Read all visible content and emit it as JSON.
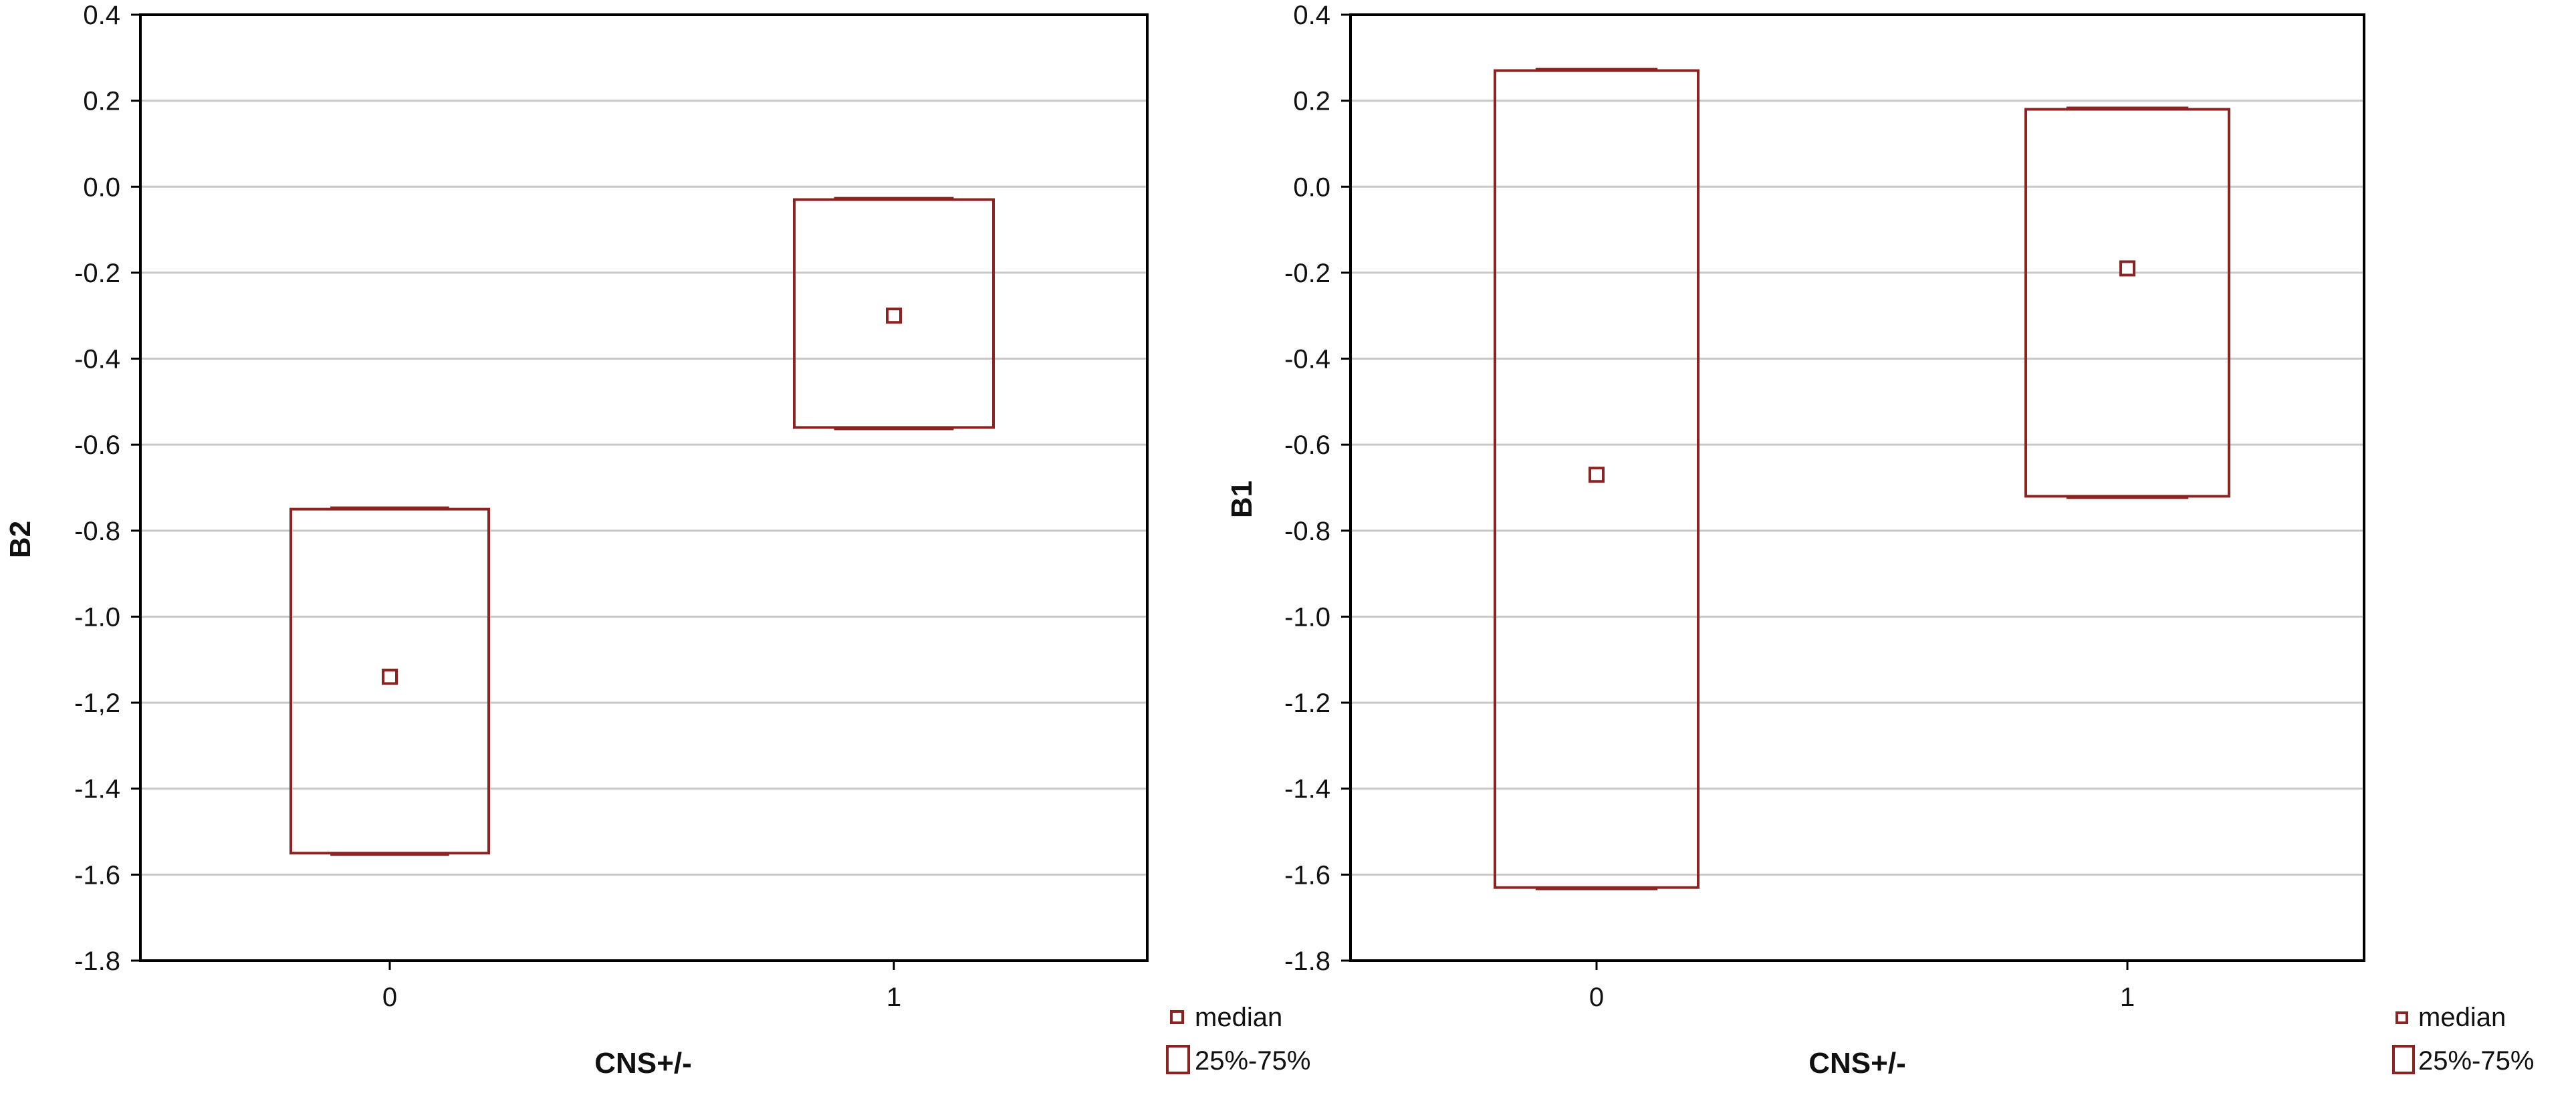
{
  "colors": {
    "box": "#8b2323",
    "gridline": "#c8c8c8",
    "frame": "#000000"
  },
  "legend": {
    "median_label": "median",
    "iqr_label": "25%-75%"
  },
  "chart_data": [
    {
      "type": "box",
      "title": "",
      "xlabel": "CNS+/-",
      "ylabel": "B2",
      "categories": [
        "0",
        "1"
      ],
      "ylim": [
        -1.8,
        0.4
      ],
      "yticks": [
        "0.4",
        "0.2",
        "0.0",
        "-0.2",
        "-0.4",
        "-0.6",
        "-0.8",
        "-1.0",
        "-1,2",
        "-1.4",
        "-1.6",
        "-1.8"
      ],
      "series": [
        {
          "category": "0",
          "q1": -1.55,
          "median": -1.14,
          "q3": -0.75
        },
        {
          "category": "1",
          "q1": -0.56,
          "median": -0.3,
          "q3": -0.03
        }
      ],
      "grid": true,
      "legend_position": "bottom-right"
    },
    {
      "type": "box",
      "title": "",
      "xlabel": "CNS+/-",
      "ylabel": "B1",
      "categories": [
        "0",
        "1"
      ],
      "ylim": [
        -1.8,
        0.4
      ],
      "yticks": [
        "0.4",
        "0.2",
        "0.0",
        "-0.2",
        "-0.4",
        "-0.6",
        "-0.8",
        "-1.0",
        "-1.2",
        "-1.4",
        "-1.6",
        "-1.8"
      ],
      "series": [
        {
          "category": "0",
          "q1": -1.63,
          "median": -0.67,
          "q3": 0.27
        },
        {
          "category": "1",
          "q1": -0.72,
          "median": -0.19,
          "q3": 0.18
        }
      ],
      "grid": true,
      "legend_position": "bottom-right"
    }
  ]
}
